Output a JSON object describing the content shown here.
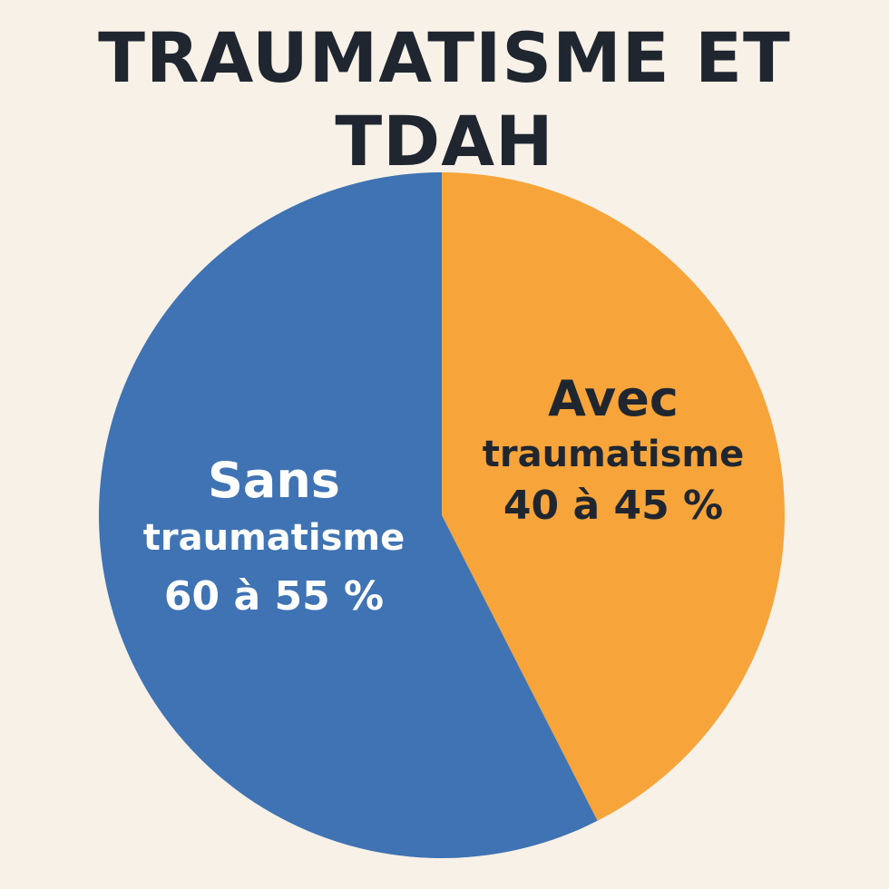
{
  "chart_data": {
    "type": "pie",
    "title_lines": [
      "TRAUMATISME ET",
      "TDAH"
    ],
    "slices": [
      {
        "label_lines": [
          "Avec",
          "traumatisme"
        ],
        "value_text": "40 à 45 %",
        "value": 42.5,
        "color": "#f7a43a",
        "text_color": "#1f2630"
      },
      {
        "label_lines": [
          "Sans",
          "traumatisme"
        ],
        "value_text": "60 à 55 %",
        "value": 57.5,
        "color": "#3f73b3",
        "text_color": "#ffffff"
      }
    ],
    "start_angle_deg": 0,
    "direction": "clockwise",
    "legend": "none",
    "grid": false
  }
}
